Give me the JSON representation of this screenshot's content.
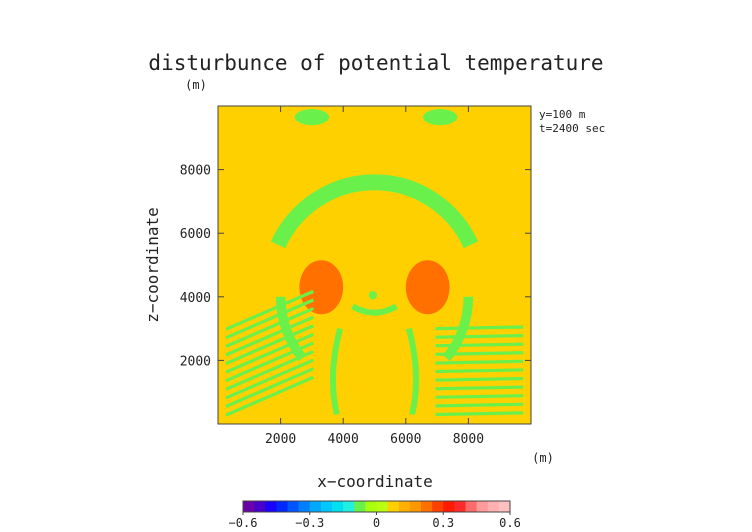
{
  "chart_data": {
    "type": "heatmap",
    "title": "disturbunce of potential temperature",
    "title_unit": "(m)",
    "xlabel": "x−coordinate",
    "ylabel": "z−coordinate",
    "x_unit": "(m)",
    "annotations": [
      "y=100 m",
      "t=2400 sec"
    ],
    "xlim": [
      0,
      10000
    ],
    "ylim": [
      0,
      10000
    ],
    "x_ticks": [
      2000,
      4000,
      6000,
      8000
    ],
    "y_ticks": [
      2000,
      4000,
      6000,
      8000
    ],
    "background_value": 0.05,
    "features": [
      {
        "kind": "arc",
        "cx": 5000,
        "cy": 4200,
        "r": 3400,
        "thickness": 500,
        "from_deg": 25,
        "to_deg": 155,
        "value": -0.05
      },
      {
        "kind": "arc",
        "cx": 5000,
        "cy": 4000,
        "r": 3000,
        "thickness": 300,
        "from_deg": 180,
        "to_deg": 220,
        "value": -0.05
      },
      {
        "kind": "arc",
        "cx": 5000,
        "cy": 4000,
        "r": 3000,
        "thickness": 300,
        "from_deg": -40,
        "to_deg": 0,
        "value": -0.05
      },
      {
        "kind": "blob",
        "cx": 3300,
        "cy": 4300,
        "rx": 700,
        "ry": 850,
        "value": 0.2
      },
      {
        "kind": "blob",
        "cx": 6700,
        "cy": 4300,
        "rx": 700,
        "ry": 850,
        "value": 0.2
      },
      {
        "kind": "blob",
        "cx": 4950,
        "cy": 4050,
        "rx": 130,
        "ry": 130,
        "value": -0.05
      },
      {
        "kind": "blob",
        "cx": 3000,
        "cy": 9650,
        "rx": 550,
        "ry": 250,
        "value": -0.05
      },
      {
        "kind": "blob",
        "cx": 7100,
        "cy": 9650,
        "rx": 550,
        "ry": 250,
        "value": -0.05
      }
    ],
    "colorbar": {
      "min": -0.6,
      "max": 0.6,
      "step": 0.05,
      "tick_values": [
        -0.6,
        -0.3,
        0,
        0.3,
        0.6
      ],
      "tick_labels": [
        "−0.6",
        "−0.3",
        "0",
        "0.3",
        "0.6"
      ],
      "colors": [
        "#6a00a8",
        "#4a00c8",
        "#1a00ff",
        "#0028ff",
        "#0055ff",
        "#0080ff",
        "#00a8ff",
        "#00c8ff",
        "#00e0f0",
        "#20f0e0",
        "#6af04a",
        "#a8ff10",
        "#b8ff10",
        "#ffd000",
        "#ffb000",
        "#ff9800",
        "#ff7000",
        "#ff4000",
        "#ff1a00",
        "#ff2a2a",
        "#ff6a6a",
        "#ff9a9a",
        "#ffb0b0",
        "#ffc0c0"
      ]
    }
  }
}
